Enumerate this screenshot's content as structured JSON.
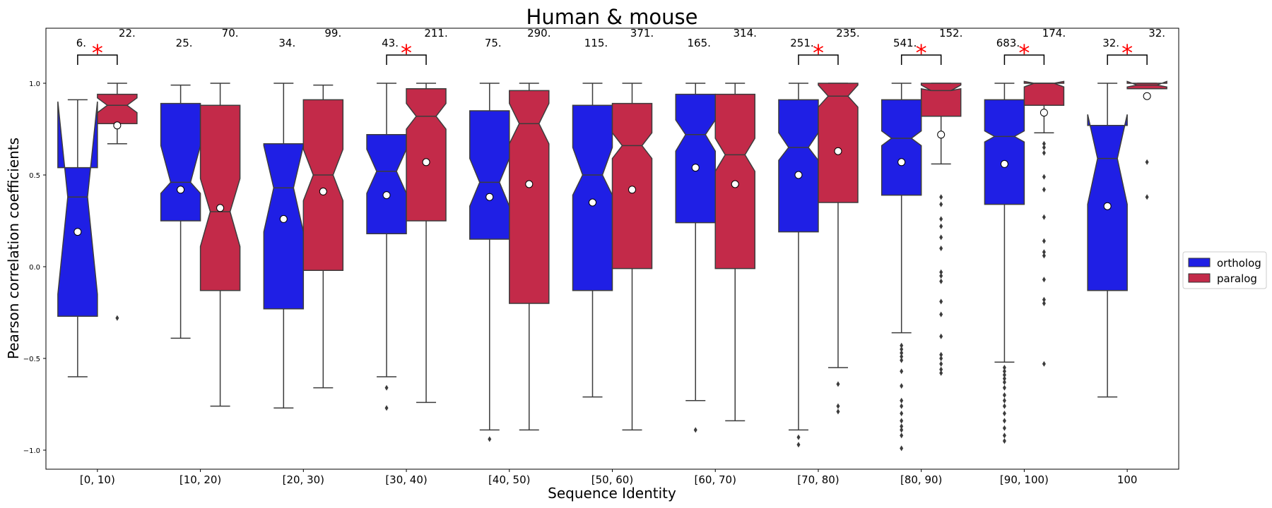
{
  "chart_data": {
    "type": "boxplot",
    "title": "Human & mouse",
    "xlabel": "Sequence Identity",
    "ylabel": "Pearson correlation coefficients",
    "ylim": [
      -1.1,
      1.3
    ],
    "yticks": [
      1.0,
      0.5,
      0.0,
      -0.5,
      -1.0
    ],
    "ytick_labels": [
      "1.0",
      "0.5",
      "0.0",
      "−0.5",
      "−1.0"
    ],
    "categories": [
      "[0, 10)",
      "[10, 20)",
      "[20, 30)",
      "[30, 40)",
      "[40, 50)",
      "[50, 60)",
      "[60, 70)",
      "[70, 80)",
      "[80, 90)",
      "[90, 100)",
      "100"
    ],
    "significance_marker": "*",
    "significant": [
      true,
      false,
      false,
      true,
      false,
      false,
      false,
      true,
      true,
      true,
      true
    ],
    "series": [
      {
        "name": "ortholog",
        "color": "#1f1fe5",
        "counts": [
          "6.",
          "25.",
          "34.",
          "43.",
          "75.",
          "115.",
          "165.",
          "251.",
          "541.",
          "683.",
          "32."
        ],
        "stats": [
          {
            "whislo": -0.6,
            "q1": -0.27,
            "med": 0.38,
            "q3": 0.54,
            "whishi": 0.91,
            "notchlo": -0.15,
            "notchhi": 0.9,
            "mean": 0.19,
            "fliers": []
          },
          {
            "whislo": -0.39,
            "q1": 0.25,
            "med": 0.46,
            "q3": 0.89,
            "whishi": 0.99,
            "notchlo": 0.4,
            "notchhi": 0.66,
            "mean": 0.42,
            "fliers": []
          },
          {
            "whislo": -0.77,
            "q1": -0.23,
            "med": 0.43,
            "q3": 0.67,
            "whishi": 1.0,
            "notchlo": 0.19,
            "notchhi": 0.66,
            "mean": 0.26,
            "fliers": []
          },
          {
            "whislo": -0.6,
            "q1": 0.18,
            "med": 0.52,
            "q3": 0.72,
            "whishi": 1.0,
            "notchlo": 0.4,
            "notchhi": 0.64,
            "mean": 0.39,
            "fliers": [
              -0.66,
              -0.77
            ]
          },
          {
            "whislo": -0.89,
            "q1": 0.15,
            "med": 0.46,
            "q3": 0.85,
            "whishi": 1.0,
            "notchlo": 0.33,
            "notchhi": 0.59,
            "mean": 0.38,
            "fliers": [
              -0.94
            ]
          },
          {
            "whislo": -0.71,
            "q1": -0.13,
            "med": 0.5,
            "q3": 0.88,
            "whishi": 1.0,
            "notchlo": 0.39,
            "notchhi": 0.65,
            "mean": 0.35,
            "fliers": []
          },
          {
            "whislo": -0.73,
            "q1": 0.24,
            "med": 0.72,
            "q3": 0.94,
            "whishi": 1.0,
            "notchlo": 0.63,
            "notchhi": 0.8,
            "mean": 0.54,
            "fliers": [
              -0.89
            ]
          },
          {
            "whislo": -0.89,
            "q1": 0.19,
            "med": 0.65,
            "q3": 0.91,
            "whishi": 1.0,
            "notchlo": 0.58,
            "notchhi": 0.73,
            "mean": 0.5,
            "fliers": [
              -0.93,
              -0.97
            ]
          },
          {
            "whislo": -0.36,
            "q1": 0.39,
            "med": 0.7,
            "q3": 0.91,
            "whishi": 1.0,
            "notchlo": 0.66,
            "notchhi": 0.74,
            "mean": 0.57,
            "fliers": [
              -0.43,
              -0.45,
              -0.47,
              -0.49,
              -0.51,
              -0.57,
              -0.65,
              -0.73,
              -0.76,
              -0.8,
              -0.84,
              -0.87,
              -0.89,
              -0.92,
              -0.99
            ]
          },
          {
            "whislo": -0.52,
            "q1": 0.34,
            "med": 0.71,
            "q3": 0.91,
            "whishi": 1.0,
            "notchlo": 0.68,
            "notchhi": 0.74,
            "mean": 0.56,
            "fliers": [
              -0.55,
              -0.57,
              -0.59,
              -0.61,
              -0.63,
              -0.66,
              -0.7,
              -0.73,
              -0.76,
              -0.8,
              -0.84,
              -0.88,
              -0.92,
              -0.95
            ]
          },
          {
            "whislo": -0.71,
            "q1": -0.13,
            "med": 0.59,
            "q3": 0.77,
            "whishi": 1.0,
            "notchlo": 0.34,
            "notchhi": 0.83,
            "mean": 0.33,
            "fliers": []
          }
        ]
      },
      {
        "name": "paralog",
        "color": "#c32a49",
        "counts": [
          "22.",
          "70.",
          "99.",
          "211.",
          "290.",
          "371.",
          "314.",
          "235.",
          "152.",
          "174.",
          "32."
        ],
        "stats": [
          {
            "whislo": 0.67,
            "q1": 0.78,
            "med": 0.88,
            "q3": 0.94,
            "whishi": 1.0,
            "notchlo": 0.84,
            "notchhi": 0.92,
            "mean": 0.77,
            "fliers": [
              -0.28
            ]
          },
          {
            "whislo": -0.76,
            "q1": -0.13,
            "med": 0.3,
            "q3": 0.88,
            "whishi": 1.0,
            "notchlo": 0.11,
            "notchhi": 0.48,
            "mean": 0.32,
            "fliers": []
          },
          {
            "whislo": -0.66,
            "q1": -0.02,
            "med": 0.5,
            "q3": 0.91,
            "whishi": 0.99,
            "notchlo": 0.36,
            "notchhi": 0.64,
            "mean": 0.41,
            "fliers": []
          },
          {
            "whislo": -0.74,
            "q1": 0.25,
            "med": 0.82,
            "q3": 0.97,
            "whishi": 1.0,
            "notchlo": 0.75,
            "notchhi": 0.89,
            "mean": 0.57,
            "fliers": []
          },
          {
            "whislo": -0.89,
            "q1": -0.2,
            "med": 0.78,
            "q3": 0.96,
            "whishi": 1.0,
            "notchlo": 0.67,
            "notchhi": 0.89,
            "mean": 0.45,
            "fliers": []
          },
          {
            "whislo": -0.89,
            "q1": -0.01,
            "med": 0.66,
            "q3": 0.89,
            "whishi": 1.0,
            "notchlo": 0.59,
            "notchhi": 0.73,
            "mean": 0.42,
            "fliers": []
          },
          {
            "whislo": -0.84,
            "q1": -0.01,
            "med": 0.61,
            "q3": 0.94,
            "whishi": 1.0,
            "notchlo": 0.52,
            "notchhi": 0.7,
            "mean": 0.45,
            "fliers": []
          },
          {
            "whislo": -0.55,
            "q1": 0.35,
            "med": 0.93,
            "q3": 1.0,
            "whishi": 1.0,
            "notchlo": 0.87,
            "notchhi": 0.99,
            "mean": 0.63,
            "fliers": [
              -0.64,
              -0.76,
              -0.79
            ]
          },
          {
            "whislo": 0.56,
            "q1": 0.82,
            "med": 0.96,
            "q3": 1.0,
            "whishi": 1.0,
            "notchlo": 0.97,
            "notchhi": 0.99,
            "mean": 0.72,
            "fliers": [
              0.38,
              0.34,
              0.26,
              0.22,
              0.16,
              0.1,
              -0.03,
              -0.05,
              -0.08,
              -0.19,
              -0.26,
              -0.38,
              -0.48,
              -0.5,
              -0.53,
              -0.56,
              -0.58
            ]
          },
          {
            "whislo": 0.73,
            "q1": 0.88,
            "med": 1.0,
            "q3": 1.0,
            "whishi": 1.0,
            "notchlo": 0.98,
            "notchhi": 1.01,
            "mean": 0.84,
            "fliers": [
              0.67,
              0.65,
              0.62,
              0.49,
              0.42,
              0.27,
              0.14,
              0.08,
              0.06,
              -0.07,
              -0.18,
              -0.2,
              -0.53
            ]
          },
          {
            "whislo": 0.97,
            "q1": 0.97,
            "med": 0.99,
            "q3": 1.0,
            "whishi": 1.0,
            "notchlo": 0.98,
            "notchhi": 1.01,
            "mean": 0.93,
            "fliers": [
              0.57,
              0.38
            ]
          }
        ]
      }
    ],
    "legend_position": "right"
  }
}
